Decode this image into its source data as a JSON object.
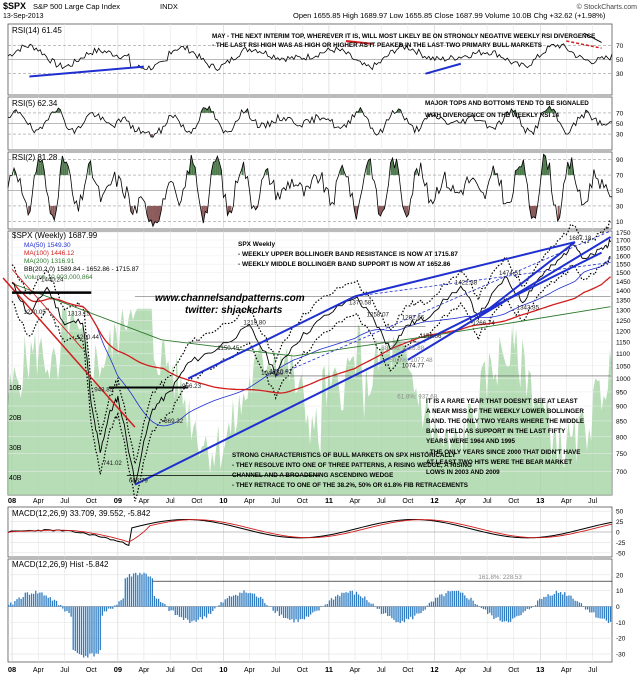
{
  "header": {
    "symbol": "$SPX",
    "name": "S&P 500 Large Cap Index",
    "exchange": "INDX",
    "date": "13-Sep-2013",
    "quote": "Open 1655.85  High 1689.97  Low 1655.85  Close 1687.99  Volume 10.0B  Chg +32.62 (+1.98%)",
    "credit": "© StockCharts.com"
  },
  "colors": {
    "rsi_above": "#4e7a4e",
    "rsi_below": "#8b5a5a",
    "blue_line": "#1f2fd0",
    "red_line": "#d11d1d",
    "volume_fill": "#9fd19f",
    "price_line": "#000000",
    "macd_hist": "#2f7cc2",
    "green_ma": "#2c7a2c",
    "fib_text": "#8a8a8a"
  },
  "panels": {
    "rsi14": {
      "label": "RSI(14) 61.45",
      "levels": [
        "70",
        "50",
        "30"
      ]
    },
    "rsi5": {
      "label": "RSI(5) 62.34",
      "levels": [
        "70",
        "50",
        "30"
      ]
    },
    "rsi2": {
      "label": "RSI(2) 81.28",
      "levels": [
        "90",
        "70",
        "50",
        "30",
        "10"
      ]
    },
    "price": {
      "label": "$SPX (Weekly) 1687.99",
      "legend": [
        {
          "text": "MA(50) 1549.30",
          "color": "#1f2fd0"
        },
        {
          "text": "MA(100) 1446.12",
          "color": "#d11d1d"
        },
        {
          "text": "MA(200) 1316.91",
          "color": "#2c7a2c"
        },
        {
          "text": "BB(20,2.0) 1589.84 - 1652.86 - 1715.87",
          "color": "#000000"
        },
        {
          "text": "Volume 10,003,000,864",
          "color": "#4e9a4e"
        }
      ],
      "vol_ticks": [
        "40B",
        "30B",
        "20B",
        "10B"
      ]
    },
    "macd": {
      "label": "MACD(12,26,9) 33.709, 39.552, -5.842",
      "levels": [
        "50",
        "25",
        "0",
        "-25",
        "-50"
      ]
    },
    "hist": {
      "label": "MACD(12,26,9) Hist -5.842",
      "levels": [
        "20",
        "10",
        "0",
        "-10",
        "-20",
        "-30"
      ]
    }
  },
  "annotations": {
    "rsi14_note": [
      "MAY - THE NEXT INTERIM TOP, WHEREVER IT IS, WILL MOST LIKELY BE ON STRONGLY NEGATIVE WEEKLY RSI DIVERGENCE",
      "- THE LAST RSI HIGH WAS AS HIGH OR HIGHER AS IT PEAKED IN THE LAST TWO PRIMARY BULL MARKETS"
    ],
    "divergence_note": [
      "MAJOR TOPS AND BOTTOMS TEND TO BE SIGNALED",
      "WITH DIVERGENCE ON THE WEEKLY RSI 14"
    ],
    "spx_weekly_note": [
      "SPX Weekly",
      "- WEEKLY UPPER BOLLINGER BAND RESISTANCE IS NOW AT 1715.87",
      "- WEEKLY MIDDLE BOLLINGER BAND SUPPORT IS NOW AT 1652.86"
    ],
    "watermark1": "www.channelsandpatterns.com",
    "watermark2": "twitter: shjackcharts",
    "rare_year_note": [
      "IT IS A RARE YEAR THAT DOESN'T SEE AT LEAST",
      "A NEAR MISS OF THE WEEKLY LOWER BOLLINGER",
      "BAND. THE ONLY TWO YEARS WHERE THE MIDDLE",
      "BAND HELD AS SUPPORT IN THE LAST FIFTY",
      "YEARS WERE 1964 AND 1995",
      "- THE ONLY YEARS SINCE 2000 THAT DIDN'T HAVE",
      "AT LEAST TWO HITS WERE THE BEAR MARKET",
      "LOWS IN 2003 AND 2009"
    ],
    "bull_note": [
      "STRONG CHARACTERISTICS OF BULL MARKETS ON SPX HISTORICALLY",
      "- THEY RESOLVE INTO ONE OF THREE PATTERNS, A RISING WEDGE, A RISING",
      "CHANNEL AND A BROADENING ASCENDING WEDGE",
      "- THEY RETRACE TO ONE OF THE 38.2%, 50% OR 61.8% FIB RETRACEMENTS"
    ]
  },
  "chart_data": {
    "type": "line",
    "title": "$SPX S&P 500 Large Cap Index INDX",
    "timeframe": "Weekly",
    "x_axis_labels": [
      "08",
      "Apr",
      "Jul",
      "Oct",
      "09",
      "Apr",
      "Jul",
      "Oct",
      "10",
      "Apr",
      "Jul",
      "Oct",
      "11",
      "Apr",
      "Jul",
      "Oct",
      "12",
      "Apr",
      "Jul",
      "Oct",
      "13",
      "Apr",
      "Jul"
    ],
    "x_range": [
      "2008-01",
      "2013-09"
    ],
    "price_axis": {
      "scale": "log",
      "ticks": [
        1750,
        1700,
        1650,
        1600,
        1550,
        1500,
        1450,
        1400,
        1350,
        1300,
        1250,
        1200,
        1150,
        1100,
        1050,
        1000,
        950,
        900,
        850,
        800,
        750,
        700
      ]
    },
    "price_path": {
      "x": [
        "2008-01",
        "2008-03",
        "2008-05",
        "2008-07",
        "2008-09",
        "2008-10",
        "2008-11",
        "2008-12",
        "2009-01",
        "2009-03",
        "2009-05",
        "2009-07",
        "2009-09",
        "2009-12",
        "2010-04",
        "2010-07",
        "2010-09",
        "2010-12",
        "2011-04",
        "2011-06",
        "2011-08",
        "2011-10",
        "2011-12",
        "2012-04",
        "2012-06",
        "2012-09",
        "2012-11",
        "2013-01",
        "2013-03",
        "2013-05",
        "2013-06",
        "2013-08",
        "2013-09"
      ],
      "y": [
        1440,
        1270,
        1420,
        1230,
        1250,
        900,
        750,
        870,
        930,
        667,
        890,
        950,
        1060,
        1115,
        1219,
        1020,
        1140,
        1250,
        1370,
        1260,
        1120,
        1230,
        1260,
        1422,
        1270,
        1470,
        1343,
        1480,
        1560,
        1687,
        1570,
        1640,
        1688
      ]
    },
    "price_labels": [
      {
        "text": "1440.24",
        "date": "2008-05"
      },
      {
        "text": "1313.15",
        "date": "2008-08"
      },
      {
        "text": "1270.05",
        "date": "2008-03"
      },
      {
        "text": "1200.44",
        "date": "2008-09"
      },
      {
        "text": "943.85",
        "date": "2008-11"
      },
      {
        "text": "741.02",
        "date": "2008-12"
      },
      {
        "text": "666.79",
        "date": "2009-03"
      },
      {
        "text": "869.32",
        "date": "2009-07"
      },
      {
        "text": "956.23",
        "date": "2009-09"
      },
      {
        "text": "1150.45",
        "date": "2010-01"
      },
      {
        "text": "1219.80",
        "date": "2010-04"
      },
      {
        "text": "1044.50",
        "date": "2010-06"
      },
      {
        "text": "1010.91",
        "date": "2010-07"
      },
      {
        "text": "1370.58",
        "date": "2011-04"
      },
      {
        "text": "1258.07",
        "date": "2011-06"
      },
      {
        "text": "1292.66",
        "date": "2011-10"
      },
      {
        "text": "1158.66",
        "date": "2011-12"
      },
      {
        "text": "1074.77",
        "date": "2011-10"
      },
      {
        "text": "1422.38",
        "date": "2012-04"
      },
      {
        "text": "1266.74",
        "date": "2012-06"
      },
      {
        "text": "1474.51",
        "date": "2012-09"
      },
      {
        "text": "1343.35",
        "date": "2012-11"
      },
      {
        "text": "1687.18",
        "date": "2013-05"
      }
    ],
    "fib_levels": [
      {
        "label": "38.2%: 1128.88"
      },
      {
        "label": "50.0%: 1077.48"
      },
      {
        "label": "61.8%: 937.68"
      }
    ],
    "macd_hist_fib": "161.8%: 228.53",
    "rsi14": {
      "last": 61.45
    },
    "rsi5": {
      "last": 62.34
    },
    "rsi2": {
      "last": 81.28
    },
    "macd": {
      "macd": 33.709,
      "signal": 39.552,
      "hist": -5.842
    },
    "grid": true,
    "legend": "top-left"
  }
}
